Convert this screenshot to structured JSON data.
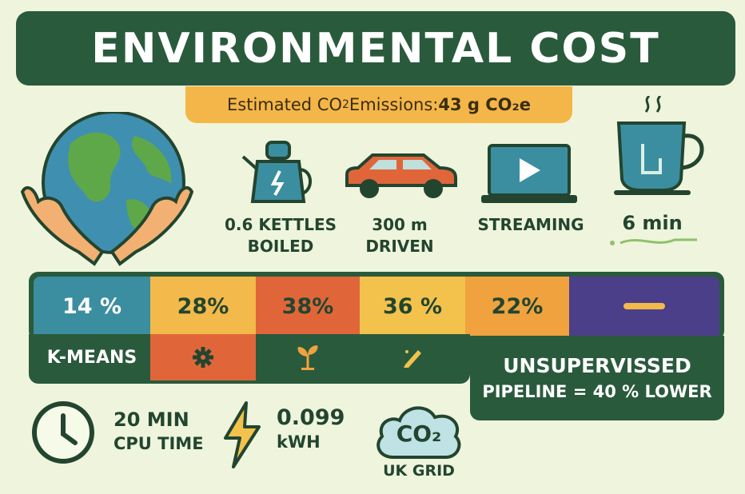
{
  "header": {
    "title": "ENVIRONMENTAL COST",
    "subtitle_prefix": "Estimated CO",
    "subtitle_sub": "2",
    "subtitle_mid": " Emissions: ",
    "subtitle_value": "43 g CO₂e"
  },
  "equivalents": [
    {
      "icon": "kettle-icon",
      "line1": "0.6 KETTLES",
      "line2": "BOILED"
    },
    {
      "icon": "car-icon",
      "line1": "300 m",
      "line2": "DRIVEN"
    },
    {
      "icon": "laptop-play-icon",
      "line1": "STREAMING",
      "line2": ""
    },
    {
      "icon": "coffee-cup-icon",
      "line1": "6 min",
      "line2": ""
    }
  ],
  "breakdown": {
    "segments": [
      {
        "label": "14 %",
        "color": "#3b8ea0",
        "text_color": "#ffffff"
      },
      {
        "label": "28%",
        "color": "#f3b94a",
        "text_color": "#23452f"
      },
      {
        "label": "38%",
        "color": "#e0663a",
        "text_color": "#23452f"
      },
      {
        "label": "36 %",
        "color": "#f3c24c",
        "text_color": "#23452f"
      },
      {
        "label": "22%",
        "color": "#efa23e",
        "text_color": "#23452f"
      },
      {
        "label": "",
        "color": "#4b3f8a",
        "text_color": "#ffffff"
      }
    ],
    "kmeans_label": "K-MEANS",
    "tag_icons": [
      "gear-icon",
      "sprout-icon",
      "pencil-icon"
    ]
  },
  "callout": {
    "line1": "UNSUPERVISSED",
    "line2": "PIPELINE = 40 % LOWER"
  },
  "stats": {
    "cpu_value": "20 MIN",
    "cpu_label": "CPU TIME",
    "energy_value": "0.099",
    "energy_label": "kWH",
    "grid_badge": "CO₂",
    "grid_label": "UK GRID"
  },
  "colors": {
    "background": "#eef5dc",
    "primary_green": "#2a5a3c",
    "accent_orange": "#f4b648"
  }
}
